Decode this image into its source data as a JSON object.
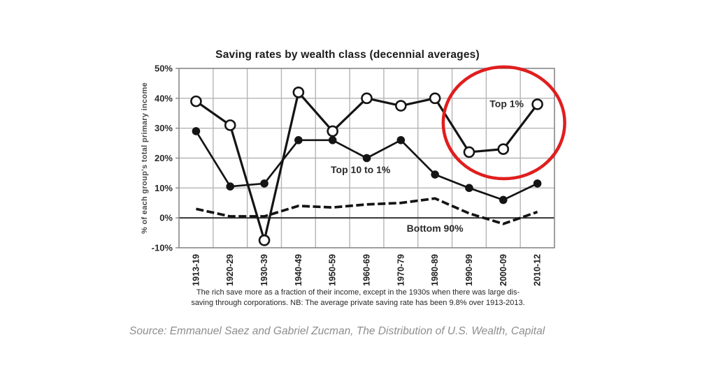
{
  "figure": {
    "title": "Saving rates by wealth class (decennial averages)",
    "footnote_lines": [
      "The rich save more as a fraction of their income, except in the 1930s when there was large dis-",
      "saving through corporations. NB: The average private saving rate has been 9.8% over 1913-2013."
    ],
    "source": "Source: Emmanuel Saez and Gabriel Zucman, The Distribution of U.S. Wealth, Capital"
  },
  "chart_data": {
    "type": "line",
    "title": "Saving rates by wealth class (decennial averages)",
    "xlabel": "",
    "ylabel": "% of each group's total primary income",
    "ylim": [
      -10,
      50
    ],
    "yticks": [
      50,
      40,
      30,
      20,
      10,
      0,
      -10
    ],
    "ytick_suffix": "%",
    "grid": true,
    "legend": "inline-annotations",
    "categories": [
      "1913-19",
      "1920-29",
      "1930-39",
      "1940-49",
      "1950-59",
      "1960-69",
      "1970-79",
      "1980-89",
      "1990-99",
      "2000-09",
      "2010-12"
    ],
    "series": [
      {
        "name": "Bottom 90%",
        "style": "dashed",
        "marker": "none",
        "values": [
          3,
          0.5,
          0.5,
          4,
          3.5,
          4.5,
          5,
          6.5,
          1.5,
          -2,
          2
        ]
      },
      {
        "name": "Top 10 to 1%",
        "style": "solid",
        "marker": "filled-circle",
        "values": [
          29,
          10.5,
          11.5,
          26,
          26,
          20,
          26,
          14.5,
          10,
          6,
          11.5
        ]
      },
      {
        "name": "Top 1%",
        "style": "solid",
        "marker": "open-circle",
        "values": [
          39,
          31,
          -7.5,
          42,
          29,
          40,
          37.5,
          40,
          22,
          23,
          38
        ]
      }
    ],
    "annotations": [
      {
        "label": "Top 1%",
        "x_index": 9.1,
        "y_value": 38.2
      },
      {
        "label": "Top 10 to 1%",
        "x_index": 4.82,
        "y_value": 16.1
      },
      {
        "label": "Bottom 90%",
        "x_index": 7.0,
        "y_value": -3.5
      }
    ],
    "highlight_ellipse": {
      "center_x_index": 9.02,
      "center_y_value": 31.8,
      "radius_x_categories": 1.78,
      "radius_y_percent": 18.7,
      "color": "#e01e1e"
    }
  },
  "colors": {
    "background": "#ffffff",
    "line": "#141414",
    "grid": "#b5b5b5",
    "frame": "#878787",
    "zero_line": "#3c3c3c",
    "tick_text": "#2b2b2b",
    "category_text": "#1f1f1f",
    "axis_title_text": "#4a4a4a",
    "annotation_text": "#2a2a2a",
    "highlight": "#e01e1e",
    "source_text": "#8e8e8e"
  }
}
